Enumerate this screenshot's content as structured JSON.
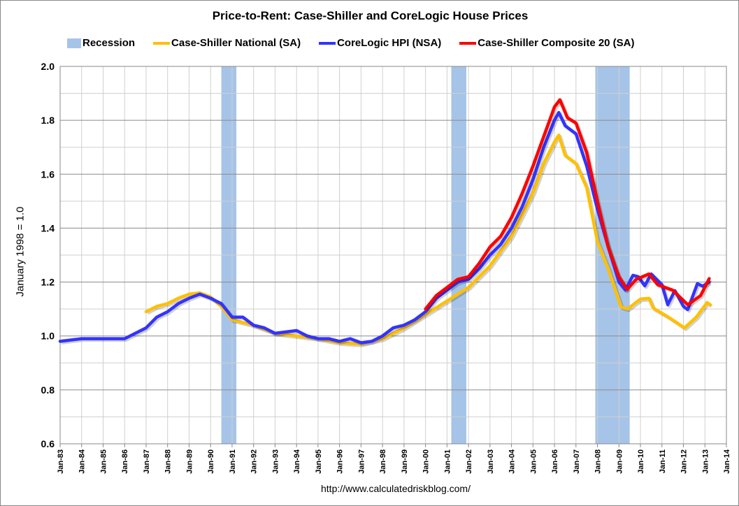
{
  "chart_data": {
    "type": "line",
    "title": "Price-to-Rent: Case-Shiller and CoreLogic House Prices",
    "ylabel": "January 1998 = 1.0",
    "xlabel": "",
    "source": "http://www.calculatedriskblog.com/",
    "ylim": [
      0.6,
      2.0
    ],
    "yticks": [
      "0.6",
      "0.8",
      "1.0",
      "1.2",
      "1.4",
      "1.6",
      "1.8",
      "2.0"
    ],
    "xlim": [
      1983,
      2014
    ],
    "xticks": [
      "Jan-83",
      "Jan-84",
      "Jan-85",
      "Jan-86",
      "Jan-87",
      "Jan-88",
      "Jan-89",
      "Jan-90",
      "Jan-91",
      "Jan-92",
      "Jan-93",
      "Jan-94",
      "Jan-95",
      "Jan-96",
      "Jan-97",
      "Jan-98",
      "Jan-99",
      "Jan-00",
      "Jan-01",
      "Jan-02",
      "Jan-03",
      "Jan-04",
      "Jan-05",
      "Jan-06",
      "Jan-07",
      "Jan-08",
      "Jan-09",
      "Jan-10",
      "Jan-11",
      "Jan-12",
      "Jan-13",
      "Jan-14"
    ],
    "grid": true,
    "legend_position": "top",
    "recession": {
      "name": "Recession",
      "color": "#a6c4e8",
      "periods": [
        [
          1990.5,
          1991.2
        ],
        [
          2001.2,
          2001.9
        ],
        [
          2007.9,
          2009.5
        ]
      ]
    },
    "series": [
      {
        "name": "Case-Shiller National (SA)",
        "color": "#ffc000",
        "x": [
          1987.0,
          1987.5,
          1988.0,
          1988.5,
          1989.0,
          1989.5,
          1990.0,
          1990.5,
          1991.0,
          1992.0,
          1993.0,
          1994.0,
          1995.0,
          1996.0,
          1997.0,
          1998.0,
          1999.0,
          2000.0,
          2001.0,
          2002.0,
          2003.0,
          2004.0,
          2005.0,
          2005.5,
          2006.0,
          2006.2,
          2006.5,
          2007.0,
          2007.5,
          2008.0,
          2008.5,
          2009.1,
          2009.4,
          2010.0,
          2010.4,
          2010.6,
          2011.3,
          2012.05,
          2012.6,
          2013.1,
          2013.25
        ],
        "y": [
          1.09,
          1.11,
          1.12,
          1.14,
          1.155,
          1.16,
          1.145,
          1.11,
          1.06,
          1.04,
          1.01,
          1.0,
          0.99,
          0.975,
          0.97,
          0.99,
          1.03,
          1.08,
          1.13,
          1.18,
          1.26,
          1.37,
          1.53,
          1.64,
          1.72,
          1.745,
          1.67,
          1.64,
          1.55,
          1.35,
          1.25,
          1.108,
          1.1,
          1.137,
          1.14,
          1.103,
          1.07,
          1.03,
          1.07,
          1.124,
          1.116
        ]
      },
      {
        "name": "CoreLogic HPI (NSA)",
        "color": "#3333ff",
        "x": [
          1983.0,
          1984.0,
          1985.0,
          1986.0,
          1986.5,
          1987.0,
          1987.5,
          1988.0,
          1988.5,
          1989.0,
          1989.5,
          1990.0,
          1990.5,
          1991.0,
          1991.5,
          1992.0,
          1992.5,
          1993.0,
          1994.0,
          1994.5,
          1995.0,
          1995.5,
          1996.0,
          1996.5,
          1997.0,
          1997.5,
          1998.0,
          1998.5,
          1999.0,
          1999.5,
          2000.0,
          2000.5,
          2001.0,
          2001.5,
          2002.0,
          2002.5,
          2003.0,
          2003.5,
          2004.0,
          2004.5,
          2005.0,
          2005.5,
          2006.0,
          2006.2,
          2006.5,
          2007.0,
          2007.5,
          2008.0,
          2008.5,
          2009.0,
          2009.3,
          2009.65,
          2009.9,
          2010.2,
          2010.5,
          2011.0,
          2011.27,
          2011.6,
          2012.0,
          2012.2,
          2012.65,
          2012.9,
          2013.2
        ],
        "y": [
          0.98,
          0.99,
          0.99,
          0.99,
          1.01,
          1.03,
          1.07,
          1.09,
          1.12,
          1.14,
          1.155,
          1.14,
          1.12,
          1.07,
          1.07,
          1.04,
          1.03,
          1.01,
          1.02,
          1.0,
          0.99,
          0.99,
          0.98,
          0.99,
          0.975,
          0.98,
          1.0,
          1.03,
          1.04,
          1.06,
          1.09,
          1.14,
          1.17,
          1.2,
          1.21,
          1.25,
          1.3,
          1.34,
          1.4,
          1.48,
          1.58,
          1.7,
          1.8,
          1.829,
          1.78,
          1.75,
          1.63,
          1.47,
          1.33,
          1.2,
          1.17,
          1.225,
          1.22,
          1.186,
          1.23,
          1.19,
          1.116,
          1.168,
          1.11,
          1.098,
          1.194,
          1.185,
          1.2
        ]
      },
      {
        "name": "Case-Shiller Composite 20 (SA)",
        "color": "#ff0000",
        "x": [
          2000.0,
          2000.5,
          2001.0,
          2001.5,
          2002.0,
          2002.5,
          2003.0,
          2003.5,
          2004.0,
          2004.5,
          2005.0,
          2005.5,
          2006.0,
          2006.25,
          2006.6,
          2007.0,
          2007.5,
          2008.0,
          2008.5,
          2009.0,
          2009.38,
          2009.8,
          2010.4,
          2010.8,
          2011.5,
          2012.2,
          2012.8,
          2013.2
        ],
        "y": [
          1.1,
          1.15,
          1.18,
          1.21,
          1.22,
          1.27,
          1.33,
          1.37,
          1.44,
          1.53,
          1.63,
          1.74,
          1.85,
          1.876,
          1.81,
          1.79,
          1.68,
          1.5,
          1.33,
          1.22,
          1.173,
          1.21,
          1.23,
          1.19,
          1.17,
          1.116,
          1.15,
          1.213
        ]
      }
    ]
  }
}
